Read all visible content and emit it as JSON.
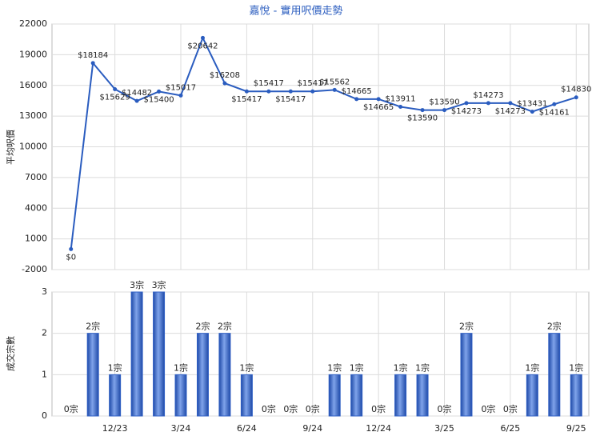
{
  "chart_data": [
    {
      "type": "line",
      "title": "嘉悅 - 實用呎價走勢",
      "y_label": "平均呎價",
      "series": [
        {
          "name": "平均呎價",
          "color": "#2a5cbf",
          "values": [
            0,
            18184,
            15629,
            14482,
            15400,
            15017,
            20642,
            16208,
            15417,
            15417,
            15417,
            15417,
            15562,
            14665,
            14665,
            13911,
            13590,
            13590,
            14273,
            14273,
            14273,
            13431,
            14161,
            14830
          ],
          "value_labels": [
            "$0",
            "$18184",
            "$15629",
            "$14482",
            "$15400",
            "$15017",
            "$20642",
            "$16208",
            "$15417",
            "$15417",
            "$15417",
            "$15417",
            "$15562",
            "$14665",
            "$14665",
            "$13911",
            "$13590",
            "$13590",
            "$14273",
            "$14273",
            "$14273",
            "$13431",
            "$14161",
            "$14830"
          ]
        }
      ],
      "ylim": [
        -2000,
        22000
      ],
      "yticks": [
        -2000,
        1000,
        4000,
        7000,
        10000,
        13000,
        16000,
        19000,
        22000
      ],
      "grid": true
    },
    {
      "type": "bar",
      "y_label": "成交宗數",
      "categories": [
        null,
        null,
        "12/23",
        null,
        null,
        "3/24",
        null,
        null,
        "6/24",
        null,
        null,
        "9/24",
        null,
        null,
        "12/24",
        null,
        null,
        "3/25",
        null,
        null,
        "6/25",
        null,
        null,
        "9/25"
      ],
      "series": [
        {
          "name": "成交宗數",
          "color": "#2f5fc4",
          "values": [
            0,
            2,
            1,
            3,
            3,
            1,
            2,
            2,
            1,
            0,
            0,
            0,
            1,
            1,
            0,
            1,
            1,
            0,
            2,
            0,
            0,
            1,
            2,
            1
          ],
          "value_labels": [
            "0宗",
            "2宗",
            "1宗",
            "3宗",
            "3宗",
            "1宗",
            "2宗",
            "2宗",
            "1宗",
            "0宗",
            "0宗",
            "0宗",
            "1宗",
            "1宗",
            "0宗",
            "1宗",
            "1宗",
            "0宗",
            "2宗",
            "0宗",
            "0宗",
            "1宗",
            "2宗",
            "1宗"
          ]
        }
      ],
      "ylim": [
        0,
        3
      ],
      "yticks": [
        0,
        1,
        2,
        3
      ],
      "grid": true
    }
  ]
}
